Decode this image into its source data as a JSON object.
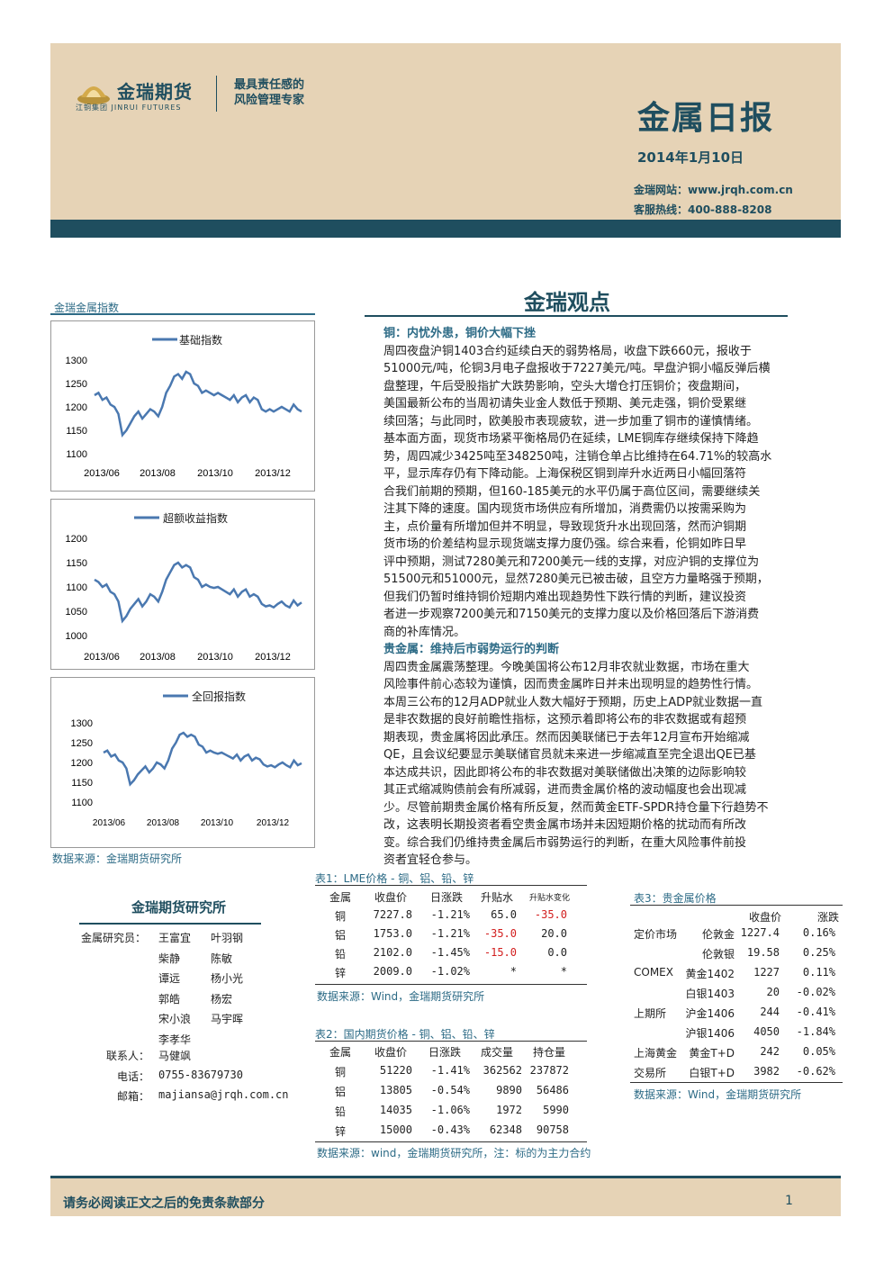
{
  "header": {
    "logo_name": "金瑞期货",
    "logo_group": "江铜集团",
    "logo_en": "JINRUI FUTURES",
    "slogan_line1": "最具责任感的",
    "slogan_line2": "风险管理专家",
    "title": "金属日报",
    "date": "2014年1月10日",
    "website": "金瑞网站：www.jrqh.com.cn",
    "hotline": "客服热线：400-888-8208"
  },
  "left": {
    "label": "金瑞金属指数",
    "source": "数据来源：金瑞期货研究所"
  },
  "charts": [
    {
      "legend": "基础指数",
      "yticks": [
        "1300",
        "1250",
        "1200",
        "1150",
        "1100"
      ],
      "xticks": [
        "2013/06",
        "2013/08",
        "2013/10",
        "2013/12"
      ]
    },
    {
      "legend": "超额收益指数",
      "yticks": [
        "1200",
        "1150",
        "1100",
        "1050",
        "1000"
      ],
      "xticks": [
        "2013/06",
        "2013/08",
        "2013/10",
        "2013/12"
      ]
    },
    {
      "legend": "全回报指数",
      "yticks": [
        "1300",
        "1250",
        "1200",
        "1150",
        "1100"
      ],
      "xticks": [
        "2013/06",
        "2013/08",
        "2013/10",
        "2013/12"
      ]
    }
  ],
  "chart_data": [
    {
      "type": "line",
      "ylim": [
        1100,
        1300
      ],
      "series": [
        {
          "name": "基础指数",
          "values": [
            1225,
            1230,
            1215,
            1220,
            1205,
            1200,
            1185,
            1140,
            1150,
            1165,
            1180,
            1190,
            1175,
            1185,
            1195,
            1190,
            1180,
            1200,
            1230,
            1245,
            1265,
            1270,
            1260,
            1275,
            1270,
            1250,
            1245,
            1230,
            1235,
            1230,
            1225,
            1230,
            1225,
            1220,
            1215,
            1225,
            1210,
            1220,
            1225,
            1210,
            1220,
            1215,
            1195,
            1190,
            1195,
            1190,
            1195,
            1200,
            1195,
            1190,
            1205,
            1195,
            1190
          ]
        }
      ]
    },
    {
      "type": "line",
      "ylim": [
        1000,
        1200
      ],
      "series": [
        {
          "name": "超额收益指数",
          "values": [
            1115,
            1110,
            1100,
            1105,
            1090,
            1085,
            1070,
            1030,
            1040,
            1055,
            1065,
            1075,
            1060,
            1070,
            1085,
            1080,
            1070,
            1090,
            1115,
            1130,
            1145,
            1150,
            1140,
            1145,
            1140,
            1120,
            1115,
            1100,
            1105,
            1100,
            1098,
            1100,
            1095,
            1090,
            1085,
            1095,
            1080,
            1090,
            1095,
            1080,
            1085,
            1080,
            1065,
            1060,
            1062,
            1058,
            1065,
            1070,
            1062,
            1058,
            1072,
            1062,
            1068
          ]
        }
      ]
    },
    {
      "type": "line",
      "ylim": [
        1100,
        1300
      ],
      "series": [
        {
          "name": "全回报指数",
          "values": [
            1225,
            1230,
            1215,
            1220,
            1205,
            1200,
            1185,
            1145,
            1155,
            1170,
            1180,
            1190,
            1175,
            1185,
            1200,
            1195,
            1185,
            1205,
            1235,
            1250,
            1270,
            1275,
            1265,
            1270,
            1265,
            1245,
            1240,
            1225,
            1230,
            1225,
            1222,
            1225,
            1220,
            1215,
            1210,
            1220,
            1205,
            1215,
            1220,
            1205,
            1212,
            1208,
            1195,
            1190,
            1193,
            1188,
            1195,
            1200,
            1193,
            1188,
            1205,
            1193,
            1198
          ]
        }
      ]
    }
  ],
  "main": {
    "section_title": "金瑞观点",
    "copper_heading": "铜：内忧外患，铜价大幅下挫",
    "copper_lines": [
      "周四夜盘沪铜1403合约延续白天的弱势格局，收盘下跌660元，报收于",
      "51000元/吨，伦铜3月电子盘报收于7227美元/吨。早盘沪铜小幅反弹后横",
      "盘整理，午后受股指扩大跌势影响，空头大增仓打压铜价；夜盘期间，",
      "美国最新公布的当周初请失业金人数低于预期、美元走强，铜价受累继",
      "续回落；与此同时，欧美股市表现疲软，进一步加重了铜市的谨慎情绪。",
      "基本面方面，现货市场紧平衡格局仍在延续，LME铜库存继续保持下降趋",
      "势，周四减少3425吨至348250吨，注销仓单占比维持在64.71%的较高水",
      "平，显示库存仍有下降动能。上海保税区铜到岸升水近两日小幅回落符",
      "合我们前期的预期，但160-185美元的水平仍属于高位区间，需要继续关",
      "注其下降的速度。国内现货市场供应有所增加，消费需仍以按需采购为",
      "主，点价量有所增加但并不明显，导致现货升水出现回落，然而沪铜期",
      "货市场的价差结构显示现货端支撑力度仍强。综合来看，伦铜如昨日早",
      "评中预期，测试7280美元和7200美元一线的支撑，对应沪铜的支撑位为",
      "51500元和51000元，显然7280美元已被击破，且空方力量略强于预期，",
      "但我们仍暂时维持铜价短期内难出现趋势性下跌行情的判断，建议投资",
      "者进一步观察7200美元和7150美元的支撑力度以及价格回落后下游消费",
      "商的补库情况。"
    ],
    "precious_heading": "贵金属：维持后市弱势运行的判断",
    "precious_lines": [
      "周四贵金属震荡整理。今晚美国将公布12月非农就业数据，市场在重大",
      "风险事件前心态较为谨慎，因而贵金属昨日并未出现明显的趋势性行情。",
      "本周三公布的12月ADP就业人数大幅好于预期，历史上ADP就业数据一直",
      "是非农数据的良好前瞻性指标，这预示着即将公布的非农数据或有超预",
      "期表现，贵金属将因此承压。然而因美联储已于去年12月宣布开始缩减",
      "QE，且会议纪要显示美联储官员就未来进一步缩减直至完全退出QE已基",
      "本达成共识，因此即将公布的非农数据对美联储做出决策的边际影响较",
      "其正式缩减购债前会有所减弱，进而贵金属价格的波动幅度也会出现减",
      "少。尽管前期贵金属价格有所反复，然而黄金ETF-SPDR持仓量下行趋势不",
      "改，这表明长期投资者看空贵金属市场并未因短期价格的扰动而有所改",
      "变。综合我们仍维持贵金属后市弱势运行的判断，在重大风险事件前投",
      "资者宜轻仓参与。"
    ]
  },
  "institute": {
    "title": "金瑞期货研究所",
    "researcher_label": "金属研究员：",
    "researchers": [
      [
        "王富宜",
        "叶羽钢"
      ],
      [
        "柴静",
        "陈敏"
      ],
      [
        "谭远",
        "杨小光"
      ],
      [
        "郭皓",
        "杨宏"
      ],
      [
        "宋小浪",
        "马宇晖"
      ],
      [
        "李孝华",
        ""
      ]
    ],
    "contact_label": "联系人：",
    "contact": "马健飒",
    "phone_label": "电话：",
    "phone": "0755-83679730",
    "email_label": "邮箱：",
    "email": "majiansa@jrqh.com.cn"
  },
  "table1": {
    "title": "表1：LME价格 - 铜、铝、铅、锌",
    "headers": [
      "金属",
      "收盘价",
      "日涨跌",
      "升贴水",
      "升贴水变化"
    ],
    "rows": [
      [
        "铜",
        "7227.8",
        "-1.21%",
        "65.0",
        "-35.0"
      ],
      [
        "铝",
        "1753.0",
        "-1.21%",
        "-35.0",
        "20.0"
      ],
      [
        "铅",
        "2102.0",
        "-1.45%",
        "-15.0",
        "0.0"
      ],
      [
        "锌",
        "2009.0",
        "-1.02%",
        "*",
        "*"
      ]
    ],
    "source": "数据来源：Wind，金瑞期货研究所"
  },
  "table2": {
    "title": "表2：国内期货价格 - 铜、铝、铅、锌",
    "headers": [
      "金属",
      "收盘价",
      "日涨跌",
      "成交量",
      "持仓量"
    ],
    "rows": [
      [
        "铜",
        "51220",
        "-1.41%",
        "362562",
        "237872"
      ],
      [
        "铝",
        "13805",
        "-0.54%",
        "9890",
        "56486"
      ],
      [
        "铅",
        "14035",
        "-1.06%",
        "1972",
        "5990"
      ],
      [
        "锌",
        "15000",
        "-0.43%",
        "62348",
        "90758"
      ]
    ],
    "source": "数据来源：wind，金瑞期货研究所，注：标的为主力合约"
  },
  "table3": {
    "title": "表3：贵金属价格",
    "headers": [
      "收盘价",
      "涨跌"
    ],
    "rows": [
      [
        "定价市场",
        "伦敦金",
        "1227.4",
        "0.16%"
      ],
      [
        "",
        "伦敦银",
        "19.58",
        "0.25%"
      ],
      [
        "COMEX",
        "黄金1402",
        "1227",
        "0.11%"
      ],
      [
        "",
        "白银1403",
        "20",
        "-0.02%"
      ],
      [
        "上期所",
        "沪金1406",
        "244",
        "-0.41%"
      ],
      [
        "",
        "沪银1406",
        "4050",
        "-1.84%"
      ],
      [
        "上海黄金",
        "黄金T+D",
        "242",
        "0.05%"
      ],
      [
        "交易所",
        "白银T+D",
        "3982",
        "-0.62%"
      ]
    ],
    "source": "数据来源：Wind，金瑞期货研究所"
  },
  "footer": {
    "disclaimer": "请务必阅读正文之后的免责条款部分",
    "page": "1"
  },
  "colors": {
    "accent": "#1f4e5f",
    "beige": "#e6d3b6",
    "chart_line": "#4a78b0",
    "negative": "#d21e1e"
  }
}
